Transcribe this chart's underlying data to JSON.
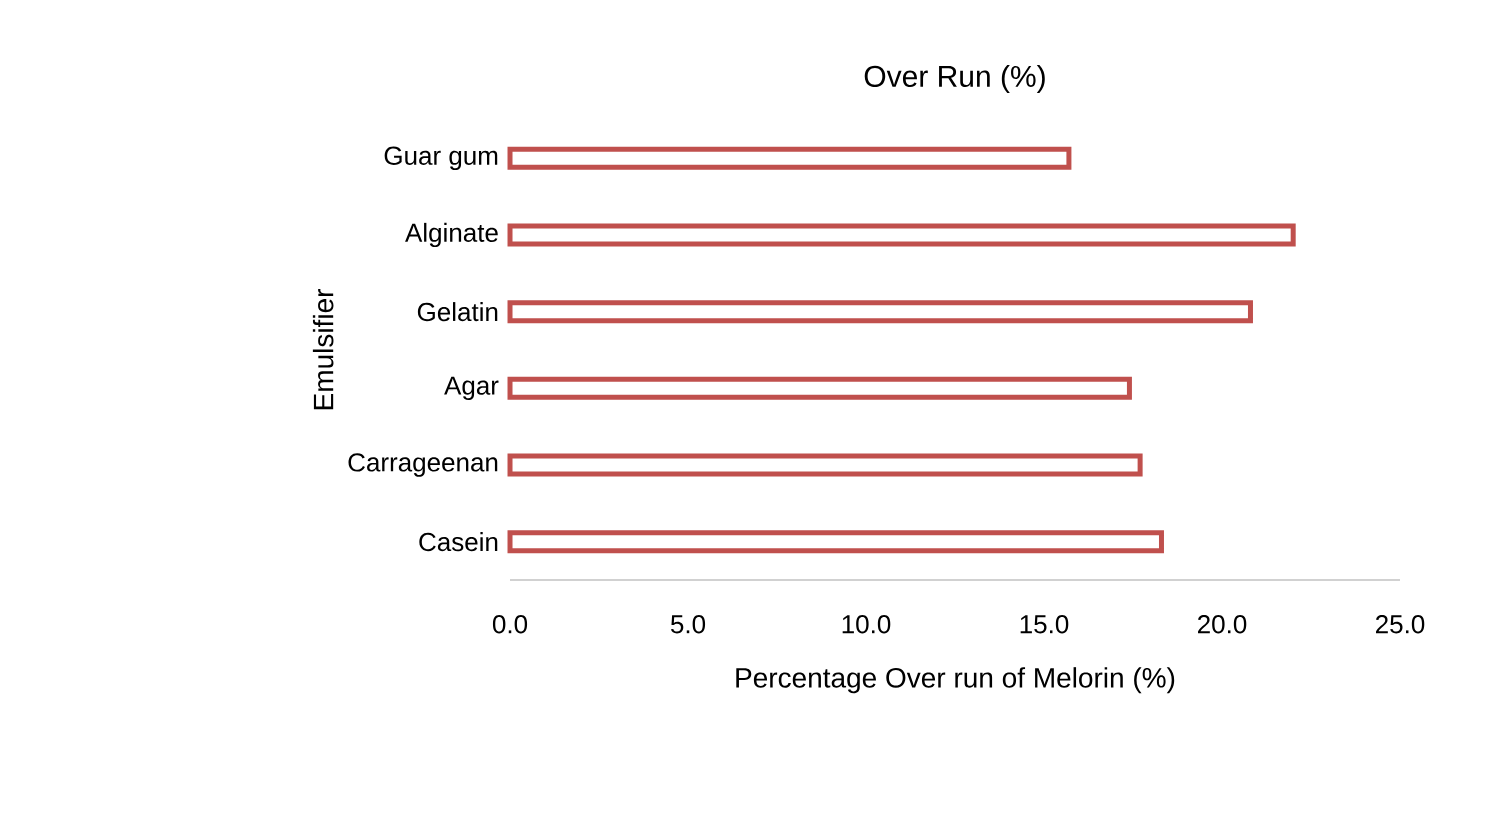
{
  "chart_data": {
    "type": "bar",
    "orientation": "horizontal",
    "title": "Over Run (%)",
    "xlabel": "Percentage Over run of Melorin (%)",
    "ylabel": "Emulsifier",
    "categories": [
      "Guar gum",
      "Alginate",
      "Gelatin",
      "Agar",
      "Carrageenan",
      "Casein"
    ],
    "values": [
      15.7,
      22.0,
      20.8,
      17.4,
      17.7,
      18.3
    ],
    "color": "#c0504d",
    "xlim": [
      0,
      25
    ],
    "xticks": [
      {
        "value": 0,
        "label": "0.0"
      },
      {
        "value": 5,
        "label": "5.0"
      },
      {
        "value": 10,
        "label": "10.0"
      },
      {
        "value": 15,
        "label": "15.0"
      },
      {
        "value": 20,
        "label": "20.0"
      },
      {
        "value": 25,
        "label": "25.0"
      }
    ],
    "grid": false
  }
}
